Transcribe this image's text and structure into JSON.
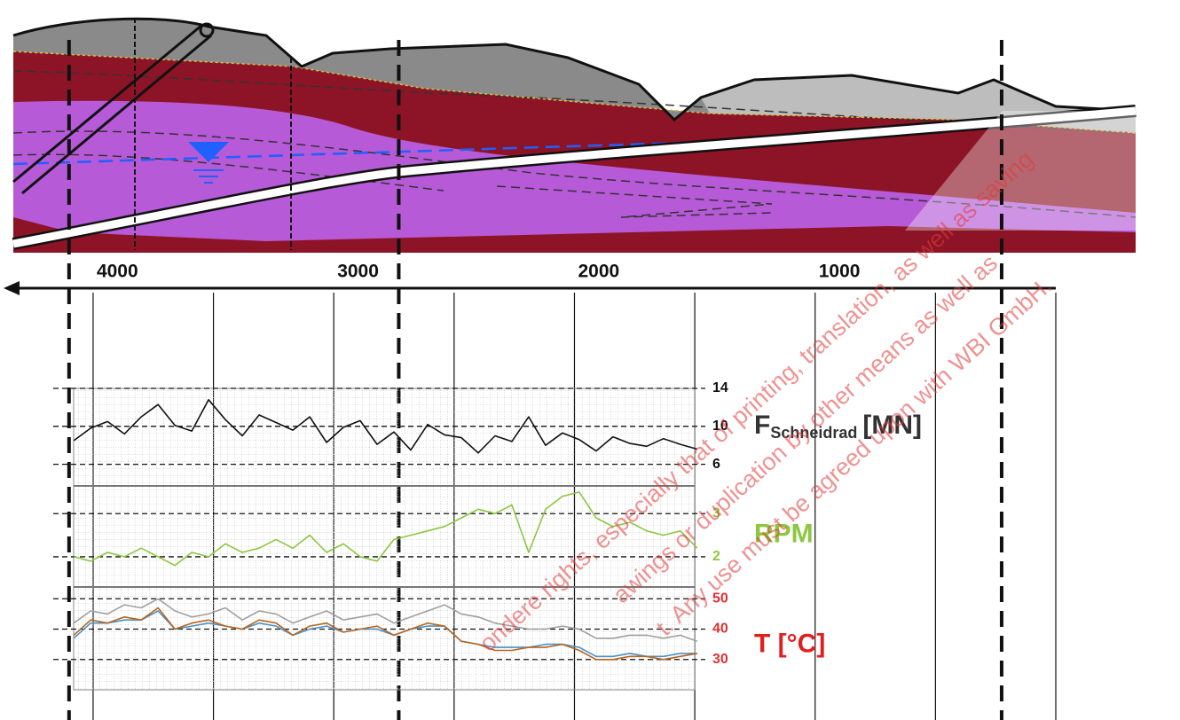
{
  "chart_data": [
    {
      "type": "axis",
      "xlim": [
        4350,
        0
      ],
      "xticks": [
        4000,
        3000,
        2000,
        1000
      ],
      "xminor": [
        3500,
        2500,
        1500,
        500,
        0
      ],
      "boundaries": [
        4100,
        2730,
        225
      ]
    },
    {
      "type": "line",
      "title": "F",
      "title_subscript": "Schneidrad",
      "unit": "[MN]",
      "title_color": "#333333",
      "tick_color": "#111111",
      "color": "#111111",
      "xlim": [
        4350,
        0
      ],
      "ylim": [
        4,
        14
      ],
      "yticks": [
        14,
        10,
        6
      ],
      "x": [
        4080,
        4010,
        3940,
        3870,
        3800,
        3730,
        3660,
        3590,
        3520,
        3450,
        3380,
        3310,
        3240,
        3170,
        3100,
        3030,
        2960,
        2890,
        2820,
        2750,
        2680,
        2610,
        2540,
        2470,
        2400,
        2330,
        2260,
        2190,
        2120,
        2050,
        1980,
        1910,
        1840,
        1770,
        1700,
        1630,
        1560,
        1490
      ],
      "values": [
        8.5,
        9.8,
        10.5,
        9.2,
        11.0,
        12.3,
        10.1,
        9.5,
        12.8,
        10.7,
        9.0,
        11.2,
        10.4,
        9.6,
        11.0,
        8.3,
        9.9,
        10.6,
        8.1,
        9.4,
        7.5,
        10.2,
        9.1,
        8.8,
        7.2,
        9.0,
        8.4,
        11.0,
        8.0,
        9.3,
        8.6,
        7.4,
        8.9,
        8.2,
        7.9,
        8.7,
        8.1,
        7.6
      ]
    },
    {
      "type": "line",
      "title": "RPM",
      "title_color": "#8dc63f",
      "tick_color": "#8dc63f",
      "color": "#8dc63f",
      "xlim": [
        4350,
        0
      ],
      "ylim": [
        1.3,
        3.6
      ],
      "yticks": [
        3,
        2
      ],
      "x": [
        4080,
        4010,
        3940,
        3870,
        3800,
        3730,
        3660,
        3590,
        3520,
        3450,
        3380,
        3310,
        3240,
        3170,
        3100,
        3030,
        2960,
        2890,
        2820,
        2750,
        2680,
        2610,
        2540,
        2470,
        2400,
        2330,
        2260,
        2190,
        2120,
        2050,
        1980,
        1910,
        1840,
        1770,
        1700,
        1630,
        1560,
        1490
      ],
      "values": [
        2.0,
        1.9,
        2.1,
        2.0,
        2.2,
        2.0,
        1.8,
        2.1,
        2.0,
        2.3,
        2.1,
        2.2,
        2.4,
        2.2,
        2.5,
        2.1,
        2.3,
        2.0,
        1.9,
        2.4,
        2.5,
        2.6,
        2.7,
        2.9,
        3.1,
        3.0,
        3.2,
        2.1,
        3.1,
        3.4,
        3.5,
        2.9,
        2.7,
        2.8,
        2.6,
        2.5,
        2.6,
        2.2
      ]
    },
    {
      "type": "line",
      "title": "T [°C]",
      "title_color": "#e02020",
      "tick_color": "#e03030",
      "xlim": [
        4350,
        0
      ],
      "ylim": [
        20,
        53
      ],
      "yticks": [
        50,
        40,
        30
      ],
      "x": [
        4080,
        4010,
        3940,
        3870,
        3800,
        3730,
        3660,
        3590,
        3520,
        3450,
        3380,
        3310,
        3240,
        3170,
        3100,
        3030,
        2960,
        2890,
        2820,
        2750,
        2680,
        2610,
        2540,
        2470,
        2400,
        2330,
        2260,
        2190,
        2120,
        2050,
        1980,
        1910,
        1840,
        1770,
        1700,
        1630,
        1560,
        1490
      ],
      "series": [
        {
          "color": "#a0a0a0",
          "values": [
            42,
            46,
            45,
            48,
            47,
            50,
            46,
            44,
            45,
            47,
            43,
            46,
            45,
            42,
            44,
            46,
            43,
            44,
            45,
            42,
            44,
            46,
            48,
            45,
            44,
            42,
            41,
            40,
            40,
            41,
            40,
            37,
            37,
            38,
            38,
            37,
            38,
            36
          ]
        },
        {
          "color": "#4a90c8",
          "values": [
            37,
            42,
            42,
            43,
            43,
            46,
            40,
            41,
            42,
            41,
            40,
            42,
            41,
            38,
            40,
            41,
            39,
            40,
            40,
            38,
            40,
            41,
            41,
            36,
            35,
            34,
            34,
            34,
            35,
            35,
            34,
            31,
            31,
            32,
            31,
            31,
            32,
            32
          ]
        },
        {
          "color": "#b8651e",
          "values": [
            38,
            43,
            42,
            44,
            43,
            47,
            40,
            42,
            43,
            41,
            40,
            43,
            42,
            38,
            41,
            42,
            39,
            40,
            41,
            38,
            40,
            42,
            41,
            36,
            35,
            33,
            33,
            34,
            34,
            35,
            33,
            30,
            30,
            31,
            31,
            30,
            31,
            32
          ]
        }
      ]
    }
  ],
  "watermark": [
    "ondere rights, especially that of printing, translation, as well as saving",
    "awings or duplication by other means as well as",
    "t. Any use must be agreed upon with WBI GmbH."
  ]
}
